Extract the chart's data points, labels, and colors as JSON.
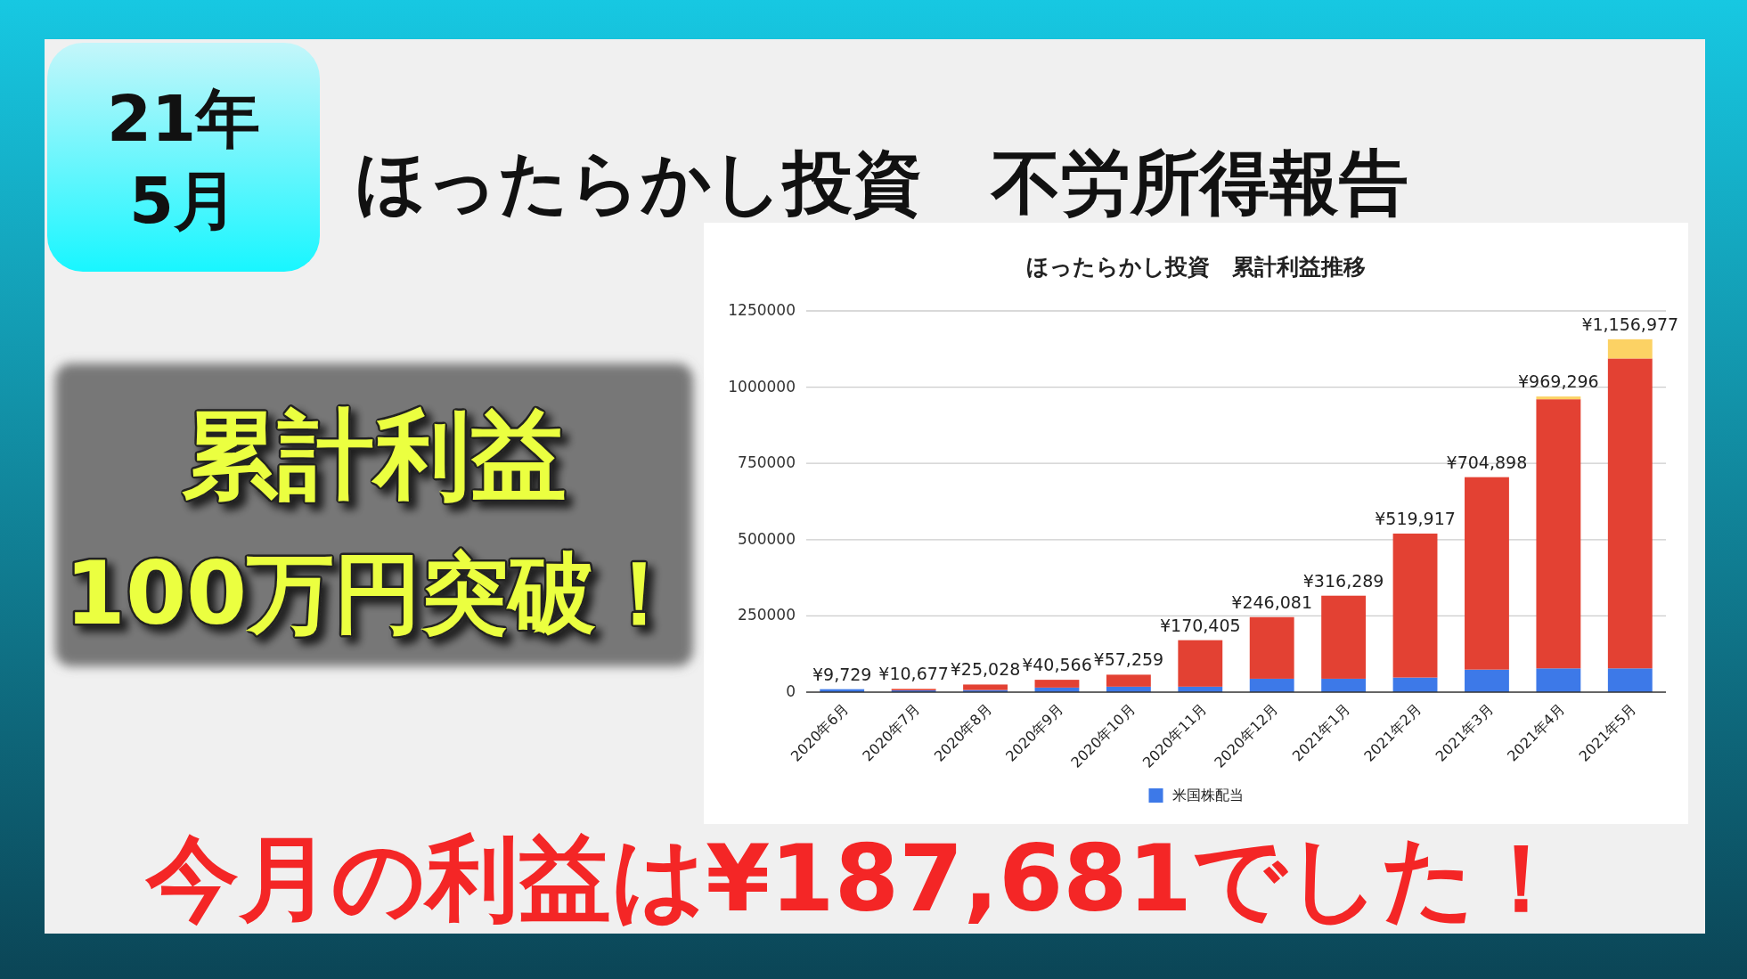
{
  "chart_data": {
    "type": "bar",
    "stacked": true,
    "title": "ほったらかし投資　累計利益推移",
    "categories": [
      "2020年6月",
      "2020年7月",
      "2020年8月",
      "2020年9月",
      "2020年10月",
      "2020年11月",
      "2020年12月",
      "2021年1月",
      "2021年2月",
      "2021年3月",
      "2021年4月",
      "2021年5月"
    ],
    "series": [
      {
        "name": "米国株配当",
        "color": "#3d79e8",
        "values": [
          9729,
          6000,
          7000,
          15000,
          18000,
          18000,
          44000,
          44000,
          48000,
          74000,
          78000,
          78000
        ]
      },
      {
        "color": "#e34133",
        "values": [
          0,
          4677,
          18028,
          25566,
          39259,
          152405,
          202081,
          272289,
          471917,
          630898,
          882296,
          1015977
        ]
      },
      {
        "color": "#fcd264",
        "values": [
          0,
          0,
          0,
          0,
          0,
          0,
          0,
          0,
          0,
          0,
          9000,
          63000
        ]
      }
    ],
    "ylim": [
      0,
      1250000
    ],
    "yticks": [
      0,
      250000,
      500000,
      750000,
      1000000,
      1250000
    ],
    "grid": "y",
    "legend": "bottom",
    "totals": [
      "¥9,729",
      "¥10,677",
      "¥25,028",
      "¥40,566",
      "¥57,259",
      "¥170,405",
      "¥246,081",
      "¥316,289",
      "¥519,917",
      "¥704,898",
      "¥969,296",
      "¥1,156,977"
    ],
    "annotations": [
      "21年",
      "5月",
      "ほったらかし投資　不労所得報告",
      "累計利益",
      "100万円突破！",
      "今月の利益は¥187,681でした！"
    ]
  }
}
